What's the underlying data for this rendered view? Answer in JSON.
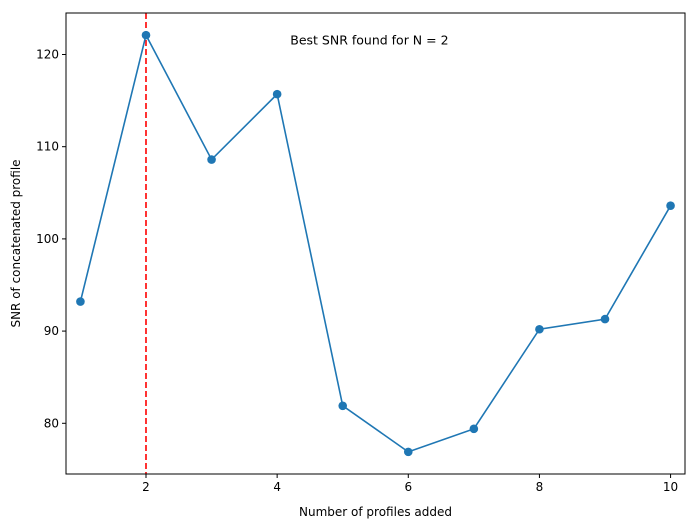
{
  "chart_data": {
    "type": "line",
    "xlabel": "Number of profiles added",
    "ylabel": "SNR of concatenated profile",
    "xlim": [
      0.78,
      10.22
    ],
    "ylim": [
      74.5,
      124.5
    ],
    "x_ticks": [
      2,
      4,
      6,
      8,
      10
    ],
    "y_ticks": [
      80,
      90,
      100,
      110,
      120
    ],
    "series": [
      {
        "x": [
          1,
          2,
          3,
          4,
          5,
          6,
          7,
          8,
          9,
          10
        ],
        "values": [
          93.2,
          122.1,
          108.6,
          115.7,
          81.9,
          76.9,
          79.4,
          90.2,
          91.3,
          103.6
        ],
        "color": "#1f77b4",
        "marker": "circle"
      }
    ],
    "reference_line": {
      "x": 2,
      "color": "#ff0000",
      "style": "dashed"
    },
    "annotation": {
      "text": "Best SNR found for N = 2",
      "x": 4.2,
      "y": 121.5
    },
    "grid": false,
    "legend": "none"
  }
}
